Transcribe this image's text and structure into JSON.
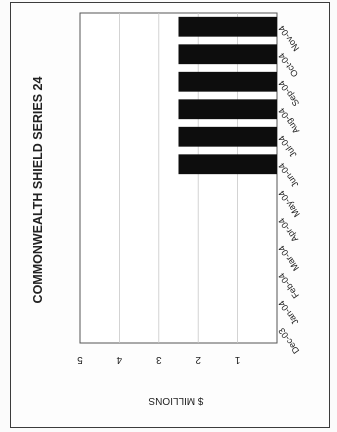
{
  "chart_data": {
    "type": "bar",
    "title": "COMMONWEALTH SHIELD SERIES 24",
    "ylabel": "$ MILLIONS",
    "xlabel": "",
    "categories": [
      "Dec-03",
      "Jan-04",
      "Feb-04",
      "Mar-04",
      "Apr-04",
      "May-04",
      "Jun-04",
      "Jul-04",
      "Aug-04",
      "Sep-04",
      "Oct-04",
      "Nov-04"
    ],
    "values": [
      null,
      null,
      null,
      null,
      null,
      null,
      2.5,
      2.5,
      2.5,
      2.5,
      2.5,
      2.5
    ],
    "ylim": [
      0,
      5
    ],
    "yticks": [
      "5",
      "4",
      "3",
      "2",
      "1"
    ],
    "grid": true,
    "orientation": "rotated 180 degrees",
    "bar_color": "#0d0d0d"
  }
}
